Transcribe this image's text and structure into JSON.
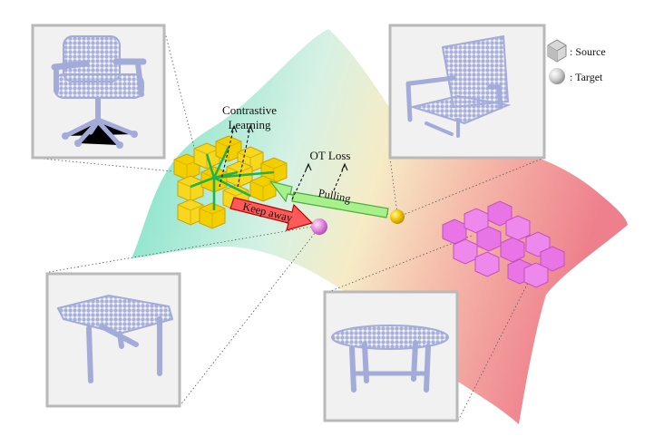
{
  "legend": {
    "source_label": ": Source",
    "target_label": ": Target"
  },
  "annotations": {
    "contrastive_line1": "Contrastive",
    "contrastive_line2": "Learning",
    "ot_loss": "OT Loss",
    "pulling": "Pulling",
    "keep_away": "Keep away"
  },
  "colors": {
    "surface_left": "#7fe3c8",
    "surface_mid": "#f1eccb",
    "surface_right": "#f08a93",
    "source_cube_left": "#f3cf00",
    "source_cube_right": "#e874e6",
    "target_sphere_left": "#f2c900",
    "target_sphere_right": "#e071db",
    "pulling_arrow": "#a8f08c",
    "keep_away_arrow": "#ff5a5a",
    "point_cloud": "#a9b1dd",
    "panel_border": "#b9b9b9"
  },
  "icons": [
    "cube-icon",
    "sphere-icon",
    "chair-pointcloud",
    "chair-pointcloud-2",
    "table-pointcloud",
    "table-pointcloud-2"
  ]
}
